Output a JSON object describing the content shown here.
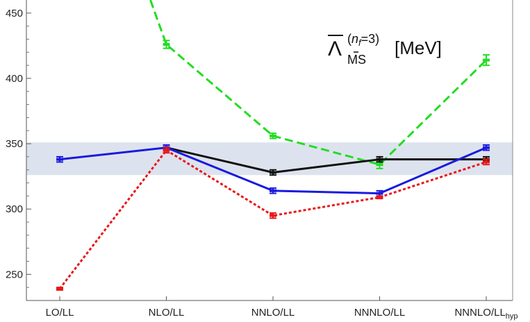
{
  "chart_data": {
    "type": "line",
    "title": "",
    "xlabel": "",
    "ylabel": "",
    "categories": [
      "LO/LL",
      "NLO/LL",
      "NNLO/LL",
      "NNNLO/LL",
      "NNNLO/LL"
    ],
    "category_subscripts": [
      "",
      "",
      "",
      "",
      "hyp"
    ],
    "ylim": [
      230,
      460
    ],
    "yticks": [
      250,
      300,
      350,
      400,
      450
    ],
    "band": {
      "low": 326,
      "high": 351,
      "color": "#dde3ee"
    },
    "annotation": {
      "symbol": "Λ",
      "subscript": "MS",
      "superscript_n": "n",
      "superscript_f": "f",
      "superscript_rest": "=3)",
      "superscript_open": "(",
      "unit": "[MeV]"
    },
    "series": [
      {
        "color": "#22dd22",
        "style": "dashed",
        "values": [
          null,
          426,
          356,
          334,
          414
        ],
        "errors": [
          null,
          3,
          2,
          3,
          4
        ],
        "enter_from": {
          "x_index": 0.85,
          "y": 460
        }
      },
      {
        "color": "#111111",
        "style": "solid",
        "values": [
          null,
          347,
          328,
          338,
          338
        ],
        "errors": [
          null,
          2,
          2,
          2,
          2
        ]
      },
      {
        "color": "#1a1adf",
        "style": "solid",
        "values": [
          338,
          347,
          314,
          312,
          347
        ],
        "errors": [
          2,
          2,
          2,
          2,
          2
        ]
      },
      {
        "color": "#e81818",
        "style": "dotted",
        "values": [
          239,
          345,
          295,
          309,
          336
        ],
        "errors": [
          1,
          2,
          2,
          1,
          2
        ]
      }
    ]
  }
}
